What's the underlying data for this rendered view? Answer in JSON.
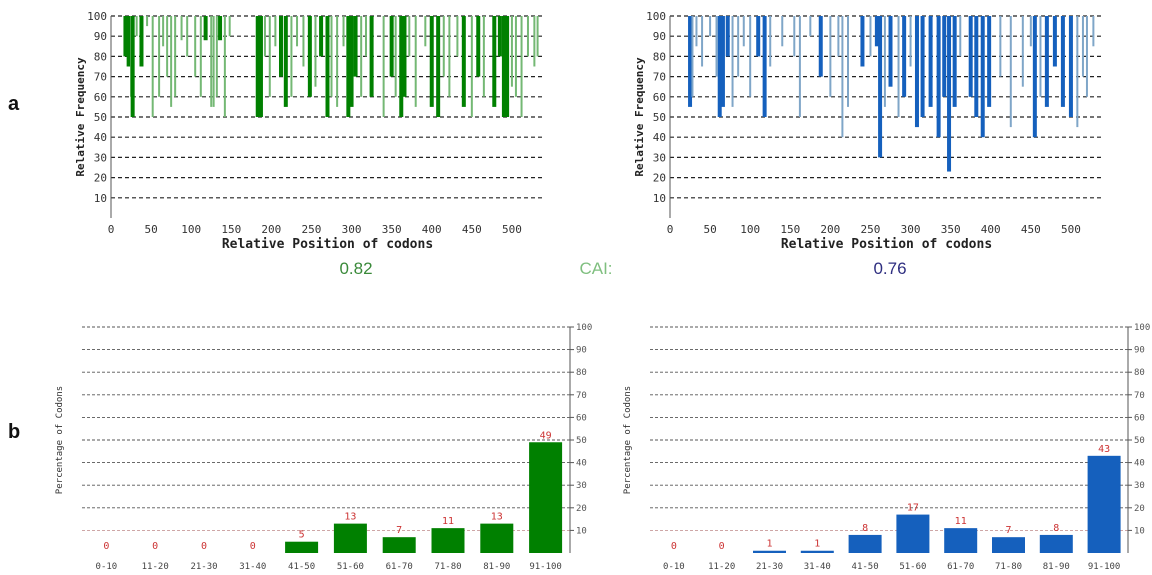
{
  "panel_labels": {
    "a": "a",
    "b": "b"
  },
  "cai": {
    "label": "CAI:",
    "left_value": "0.82",
    "right_value": "0.76"
  },
  "colors": {
    "green_dark": "#008000",
    "green_light": "#74b874",
    "blue_dark": "#1560bd",
    "blue_light": "#7fa6c8",
    "cai_label": "#7fbf7f",
    "cai_left": "#3a8a3a",
    "cai_right": "#2e2e80",
    "bar_label": "#cc3333"
  },
  "chart_data": [
    {
      "type": "bar",
      "title": "",
      "xlabel": "Relative Position of codons",
      "ylabel": "Relative Frequency",
      "xlim": [
        0,
        540
      ],
      "ylim": [
        0,
        100
      ],
      "xticks": [
        "0",
        "50",
        "100",
        "150",
        "200",
        "250",
        "300",
        "350",
        "400",
        "450",
        "500"
      ],
      "yticks": [
        "10",
        "20",
        "30",
        "40",
        "50",
        "60",
        "70",
        "80",
        "90",
        "100"
      ],
      "grid": true,
      "series": [
        {
          "x": [
            18,
            22,
            25,
            27,
            32,
            38,
            45,
            52,
            60,
            65,
            70,
            75,
            80,
            88,
            95,
            105,
            112,
            118,
            125,
            128,
            132,
            136,
            142,
            148,
            183,
            187,
            192,
            198,
            205,
            212,
            218,
            225,
            232,
            240,
            248,
            255,
            262,
            270,
            275,
            282,
            290,
            296,
            300,
            305,
            312,
            318,
            325,
            340,
            350,
            355,
            362,
            366,
            372,
            380,
            392,
            400,
            408,
            415,
            422,
            432,
            440,
            450,
            458,
            465,
            478,
            485,
            490,
            494,
            500,
            505,
            512,
            520,
            528,
            532
          ],
          "y": [
            80,
            75,
            60,
            50,
            90,
            75,
            95,
            50,
            60,
            85,
            70,
            55,
            60,
            88,
            80,
            70,
            60,
            88,
            55,
            55,
            60,
            88,
            50,
            90,
            50,
            50,
            80,
            60,
            85,
            70,
            55,
            60,
            85,
            75,
            60,
            65,
            80,
            50,
            60,
            55,
            85,
            50,
            55,
            70,
            60,
            80,
            60,
            50,
            70,
            60,
            50,
            60,
            80,
            55,
            85,
            55,
            50,
            70,
            60,
            80,
            55,
            50,
            70,
            60,
            55,
            80,
            50,
            50,
            65,
            60,
            50,
            80,
            75,
            80
          ],
          "highlight": [
            18,
            22,
            27,
            38,
            118,
            136,
            183,
            187,
            212,
            218,
            248,
            262,
            270,
            296,
            300,
            305,
            325,
            350,
            362,
            366,
            400,
            408,
            440,
            458,
            478,
            485,
            490,
            494
          ]
        }
      ]
    },
    {
      "type": "bar",
      "title": "",
      "xlabel": "Relative Position of codons",
      "ylabel": "Relative Frequency",
      "xlim": [
        0,
        540
      ],
      "ylim": [
        0,
        100
      ],
      "xticks": [
        "0",
        "50",
        "100",
        "150",
        "200",
        "250",
        "300",
        "350",
        "400",
        "450",
        "500"
      ],
      "yticks": [
        "10",
        "20",
        "30",
        "40",
        "50",
        "60",
        "70",
        "80",
        "90",
        "100"
      ],
      "grid": true,
      "series": [
        {
          "x": [
            25,
            28,
            33,
            40,
            50,
            58,
            62,
            66,
            72,
            78,
            85,
            92,
            100,
            110,
            118,
            125,
            140,
            155,
            162,
            175,
            188,
            200,
            210,
            215,
            222,
            240,
            250,
            258,
            262,
            268,
            275,
            285,
            292,
            300,
            308,
            315,
            325,
            335,
            342,
            348,
            355,
            362,
            375,
            382,
            390,
            398,
            412,
            425,
            440,
            450,
            455,
            462,
            470,
            480,
            490,
            500,
            508,
            515,
            520,
            528
          ],
          "y": [
            55,
            60,
            85,
            75,
            90,
            70,
            50,
            55,
            80,
            55,
            70,
            85,
            60,
            80,
            50,
            75,
            85,
            80,
            50,
            90,
            70,
            60,
            80,
            40,
            55,
            75,
            80,
            85,
            30,
            55,
            65,
            50,
            60,
            75,
            45,
            50,
            55,
            40,
            60,
            23,
            55,
            80,
            60,
            50,
            40,
            55,
            70,
            45,
            65,
            85,
            40,
            60,
            55,
            75,
            55,
            50,
            45,
            70,
            60,
            85
          ],
          "highlight": [
            25,
            62,
            66,
            72,
            110,
            118,
            188,
            240,
            258,
            262,
            275,
            292,
            308,
            315,
            325,
            335,
            342,
            348,
            355,
            375,
            382,
            390,
            398,
            455,
            470,
            480,
            490,
            500
          ]
        }
      ]
    },
    {
      "type": "bar",
      "title": "",
      "xlabel": "",
      "ylabel": "Percentage of Codons",
      "ylim": [
        0,
        100
      ],
      "yticks": [
        "10",
        "20",
        "30",
        "40",
        "50",
        "60",
        "70",
        "80",
        "90",
        "100"
      ],
      "grid": true,
      "categories": [
        "0-10",
        "11-20",
        "21-30",
        "31-40",
        "41-50",
        "51-60",
        "61-70",
        "71-80",
        "81-90",
        "91-100"
      ],
      "values": [
        0,
        0,
        0,
        0,
        5,
        13,
        7,
        11,
        13,
        49
      ],
      "labels": [
        "0",
        "0",
        "0",
        "0",
        "5",
        "13",
        "7",
        "11",
        "13",
        "49"
      ]
    },
    {
      "type": "bar",
      "title": "",
      "xlabel": "",
      "ylabel": "Percentage of Codons",
      "ylim": [
        0,
        100
      ],
      "yticks": [
        "10",
        "20",
        "30",
        "40",
        "50",
        "60",
        "70",
        "80",
        "90",
        "100"
      ],
      "grid": true,
      "categories": [
        "0-10",
        "11-20",
        "21-30",
        "31-40",
        "41-50",
        "51-60",
        "61-70",
        "71-80",
        "81-90",
        "91-100"
      ],
      "values": [
        0,
        0,
        1,
        1,
        8,
        17,
        11,
        7,
        8,
        43
      ],
      "labels": [
        "0",
        "0",
        "1",
        "1",
        "8",
        "17",
        "11",
        "7",
        "8",
        "43"
      ]
    }
  ]
}
